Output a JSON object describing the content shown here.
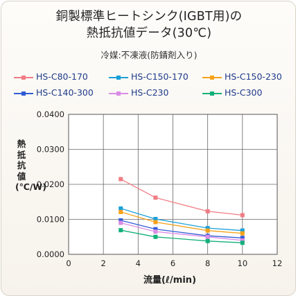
{
  "title_line1": "銅製標準ヒートシンク(IGBT用)の",
  "title_line2": "熱抵抗値データ(30℃)",
  "subtitle": "冷媒:不凍液(防錆剤入り)",
  "chart_data": {
    "type": "line",
    "title": "銅製標準ヒートシンク(IGBT用)の熱抵抗値データ(30℃)",
    "subtitle": "冷媒:不凍液(防錆剤入り)",
    "xlabel": "流量(ℓ/min)",
    "ylabel": "熱抵抗値(℃/W)",
    "xlim": [
      0,
      12
    ],
    "ylim": [
      0,
      0.04
    ],
    "xticks": [
      "0",
      "2",
      "4",
      "6",
      "8",
      "10",
      "12"
    ],
    "yticks": [
      "0.0000",
      "0.0100",
      "0.0200",
      "0.0300",
      "0.0400"
    ],
    "grid": "vertical-and-horizontal",
    "legend_position": "top",
    "x": [
      3,
      5,
      8,
      10
    ],
    "series": [
      {
        "name": "HS-C80-170",
        "color": "#f07c84",
        "values": [
          0.0215,
          0.0162,
          0.0123,
          0.0112
        ]
      },
      {
        "name": "HS-C150-170",
        "color": "#1aa0d8",
        "values": [
          0.0131,
          0.0101,
          0.0075,
          0.0068
        ]
      },
      {
        "name": "HS-C150-230",
        "color": "#f5a21b",
        "values": [
          0.0121,
          0.0092,
          0.0068,
          0.006
        ]
      },
      {
        "name": "HS-C140-300",
        "color": "#2f5bd6",
        "values": [
          0.0097,
          0.0072,
          0.0053,
          0.0047
        ]
      },
      {
        "name": "HS-C230",
        "color": "#d98ce6",
        "values": [
          0.009,
          0.0065,
          0.005,
          0.004
        ]
      },
      {
        "name": "HS-C300",
        "color": "#12b07a",
        "values": [
          0.0069,
          0.005,
          0.0038,
          0.0033
        ]
      }
    ]
  }
}
